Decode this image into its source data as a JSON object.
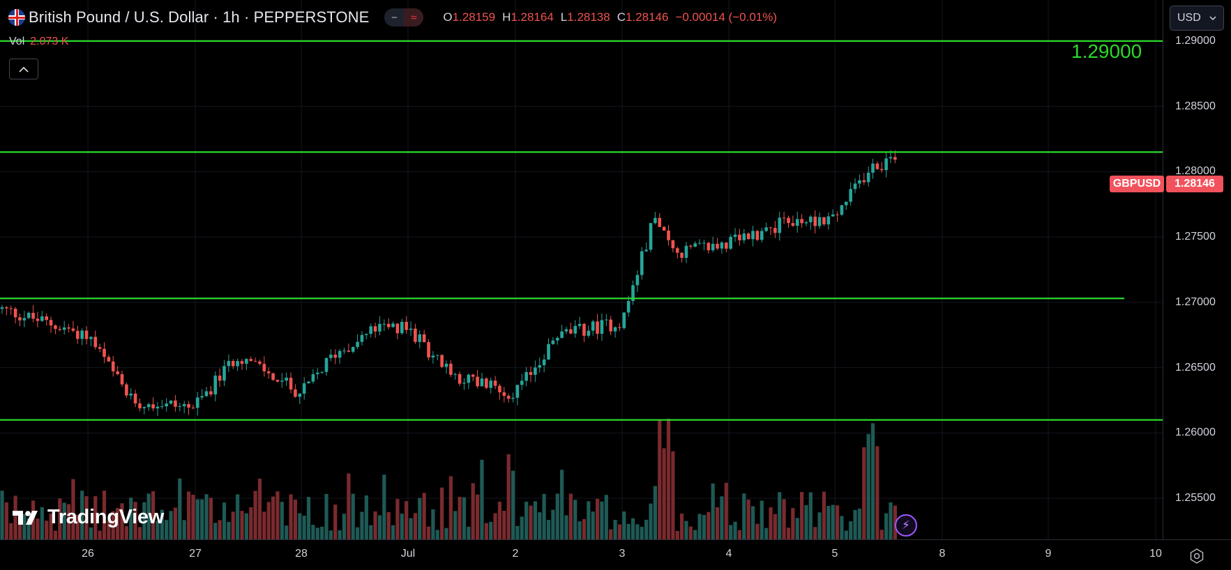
{
  "header": {
    "title": "British Pound / U.S. Dollar · 1h · PEPPERSTONE",
    "icon": "gb-us-flag-icon",
    "pill_1": "−",
    "pill_2": "≈",
    "ohlc": {
      "o_label": "O",
      "o_value": "1.28159",
      "h_label": "H",
      "h_value": "1.28164",
      "l_label": "L",
      "l_value": "1.28138",
      "c_label": "C",
      "c_value": "1.28146",
      "change": "−0.00014 (−0.01%)"
    },
    "volume_label": "Vol",
    "volume_value": "2.073 K"
  },
  "currency_select": {
    "value": "USD",
    "icon": "chevron-down-icon"
  },
  "level_label": "1.29000",
  "price_tag": {
    "symbol": "GBPUSD",
    "price": "1.28146"
  },
  "price_ticks": [
    "1.29000",
    "1.28500",
    "1.28000",
    "1.27500",
    "1.27000",
    "1.26500",
    "1.26000",
    "1.25500"
  ],
  "time_ticks": [
    "26",
    "27",
    "28",
    "Jul",
    "2",
    "3",
    "4",
    "5",
    "8",
    "9",
    "10"
  ],
  "logo_text": "TradingView",
  "colors": {
    "background": "#000000",
    "up": "#26a69a",
    "down": "#ef5350",
    "level_line": "#2bd92b",
    "price_tag": "#f2525b"
  },
  "chart_data": {
    "type": "candlestick",
    "symbol": "GBPUSD",
    "interval": "1h",
    "ylim": [
      1.2525,
      1.2925
    ],
    "horizontal_levels": [
      1.29,
      1.2815,
      1.2703,
      1.261
    ],
    "last_price": 1.28146,
    "anchors": [
      {
        "x": "26",
        "close": 1.2675
      },
      {
        "x": "26.4",
        "close": 1.2625
      },
      {
        "x": "27",
        "close": 1.262
      },
      {
        "x": "27.4",
        "close": 1.266
      },
      {
        "x": "28",
        "close": 1.263
      },
      {
        "x": "28.3",
        "close": 1.266
      },
      {
        "x": "28.7",
        "close": 1.268
      },
      {
        "x": "Jul",
        "close": 1.268
      },
      {
        "x": "Jul.4",
        "close": 1.2645
      },
      {
        "x": "2",
        "close": 1.263
      },
      {
        "x": "2.4",
        "close": 1.2675
      },
      {
        "x": "3",
        "close": 1.2685
      },
      {
        "x": "3.3",
        "close": 1.2765
      },
      {
        "x": "3.5",
        "close": 1.2738
      },
      {
        "x": "4",
        "close": 1.2745
      },
      {
        "x": "4.5",
        "close": 1.276
      },
      {
        "x": "5",
        "close": 1.2765
      },
      {
        "x": "5.3",
        "close": 1.28
      },
      {
        "x": "5.6",
        "close": 1.28146
      }
    ]
  }
}
